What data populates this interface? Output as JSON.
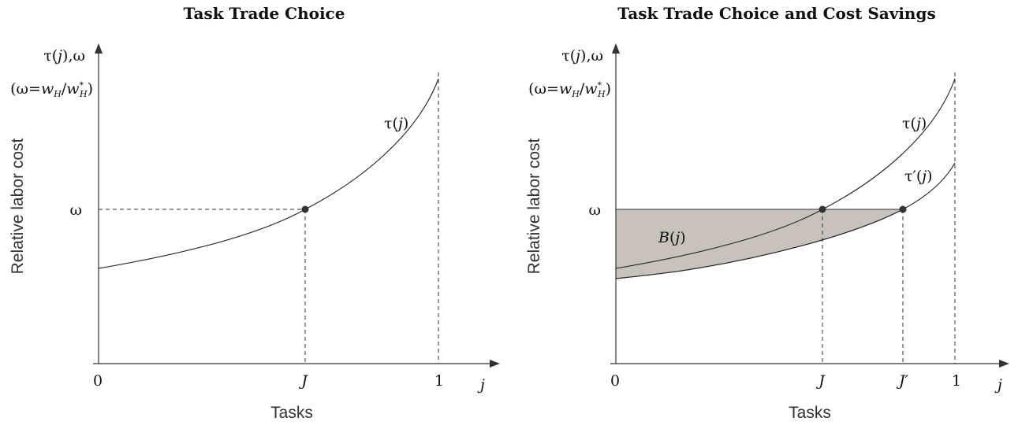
{
  "panels": [
    {
      "title": "Task Trade Choice",
      "ylabel": "Relative labor cost",
      "xlabel": "Tasks",
      "yaxis_top": "τ(j),ω",
      "yaxis_sub": "(ω=wH/w*H)",
      "omega": "ω",
      "curve_label": "τ(j)",
      "x0": "0",
      "xJ": "J",
      "x1": "1",
      "xvar": "j"
    },
    {
      "title": "Task Trade Choice and Cost Savings",
      "ylabel": "Relative labor cost",
      "xlabel": "Tasks",
      "yaxis_top": "τ(j),ω",
      "yaxis_sub": "(ω=wH/w*H)",
      "omega": "ω",
      "curve_label": "τ(j)",
      "curve2_label": "τ′(j)",
      "area_label": "B(j)",
      "x0": "0",
      "xJ": "J",
      "xJprime": "J′",
      "x1": "1",
      "xvar": "j"
    }
  ]
}
